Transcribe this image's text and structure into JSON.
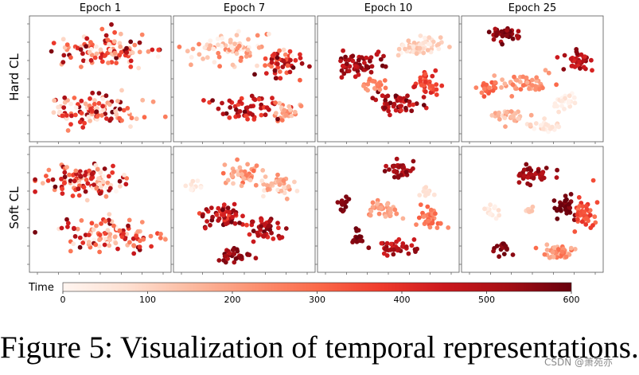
{
  "figure": {
    "caption": "Figure 5: Visualization of temporal representations.",
    "watermark": "CSDN @萧苑亦"
  },
  "chart_data": {
    "type": "scatter",
    "subtype": "t-SNE embedding grid",
    "columns": [
      "Epoch 1",
      "Epoch 7",
      "Epoch 10",
      "Epoch 25"
    ],
    "rows": [
      "Hard CL",
      "Soft CL"
    ],
    "colorbar": {
      "label": "Time",
      "min": 0,
      "max": 600,
      "ticks": [
        0,
        100,
        200,
        300,
        400,
        500,
        600
      ],
      "colormap": "Reds",
      "colors": [
        "#fff5f0",
        "#fee0d2",
        "#fcbba1",
        "#fc9272",
        "#fb6a4a",
        "#ef3b2c",
        "#cb181d",
        "#a50f15",
        "#67000d"
      ]
    },
    "panels": [
      {
        "row": "Hard CL",
        "col": "Epoch 1",
        "clusters": [
          {
            "cx": 0.52,
            "cy": 0.72,
            "sx": 0.36,
            "sy": 0.15,
            "n": 110,
            "tmin": 0,
            "tmax": 600
          },
          {
            "cx": 0.45,
            "cy": 0.25,
            "sx": 0.38,
            "sy": 0.15,
            "n": 110,
            "tmin": 0,
            "tmax": 600
          }
        ]
      },
      {
        "row": "Hard CL",
        "col": "Epoch 7",
        "clusters": [
          {
            "cx": 0.42,
            "cy": 0.75,
            "sx": 0.34,
            "sy": 0.13,
            "n": 80,
            "tmin": 0,
            "tmax": 280
          },
          {
            "cx": 0.75,
            "cy": 0.62,
            "sx": 0.17,
            "sy": 0.12,
            "n": 50,
            "tmin": 250,
            "tmax": 600
          },
          {
            "cx": 0.5,
            "cy": 0.27,
            "sx": 0.28,
            "sy": 0.11,
            "n": 55,
            "tmin": 350,
            "tmax": 600
          },
          {
            "cx": 0.78,
            "cy": 0.24,
            "sx": 0.12,
            "sy": 0.1,
            "n": 28,
            "tmin": 100,
            "tmax": 300
          }
        ]
      },
      {
        "row": "Hard CL",
        "col": "Epoch 10",
        "clusters": [
          {
            "cx": 0.72,
            "cy": 0.75,
            "sx": 0.15,
            "sy": 0.1,
            "n": 60,
            "tmin": 0,
            "tmax": 150
          },
          {
            "cx": 0.3,
            "cy": 0.62,
            "sx": 0.18,
            "sy": 0.12,
            "n": 60,
            "tmin": 450,
            "tmax": 600
          },
          {
            "cx": 0.78,
            "cy": 0.45,
            "sx": 0.12,
            "sy": 0.09,
            "n": 40,
            "tmin": 300,
            "tmax": 450
          },
          {
            "cx": 0.58,
            "cy": 0.3,
            "sx": 0.16,
            "sy": 0.1,
            "n": 50,
            "tmin": 400,
            "tmax": 600
          },
          {
            "cx": 0.4,
            "cy": 0.45,
            "sx": 0.1,
            "sy": 0.07,
            "n": 22,
            "tmin": 200,
            "tmax": 300
          }
        ]
      },
      {
        "row": "Hard CL",
        "col": "Epoch 25",
        "clusters": [
          {
            "cx": 0.32,
            "cy": 0.86,
            "sx": 0.12,
            "sy": 0.07,
            "n": 40,
            "tmin": 500,
            "tmax": 600
          },
          {
            "cx": 0.82,
            "cy": 0.64,
            "sx": 0.12,
            "sy": 0.08,
            "n": 38,
            "tmin": 420,
            "tmax": 560
          },
          {
            "cx": 0.45,
            "cy": 0.47,
            "sx": 0.2,
            "sy": 0.08,
            "n": 50,
            "tmin": 150,
            "tmax": 300
          },
          {
            "cx": 0.18,
            "cy": 0.42,
            "sx": 0.07,
            "sy": 0.07,
            "n": 20,
            "tmin": 250,
            "tmax": 350
          },
          {
            "cx": 0.72,
            "cy": 0.32,
            "sx": 0.1,
            "sy": 0.07,
            "n": 25,
            "tmin": 0,
            "tmax": 80
          },
          {
            "cx": 0.3,
            "cy": 0.2,
            "sx": 0.12,
            "sy": 0.07,
            "n": 28,
            "tmin": 80,
            "tmax": 220
          },
          {
            "cx": 0.6,
            "cy": 0.12,
            "sx": 0.12,
            "sy": 0.05,
            "n": 25,
            "tmin": 0,
            "tmax": 130
          }
        ]
      },
      {
        "row": "Soft CL",
        "col": "Epoch 1",
        "clusters": [
          {
            "cx": 0.4,
            "cy": 0.72,
            "sx": 0.34,
            "sy": 0.15,
            "n": 110,
            "tmin": 0,
            "tmax": 600
          },
          {
            "cx": 0.55,
            "cy": 0.3,
            "sx": 0.38,
            "sy": 0.15,
            "n": 110,
            "tmin": 0,
            "tmax": 600
          }
        ]
      },
      {
        "row": "Soft CL",
        "col": "Epoch 7",
        "clusters": [
          {
            "cx": 0.72,
            "cy": 0.7,
            "sx": 0.14,
            "sy": 0.1,
            "n": 40,
            "tmin": 50,
            "tmax": 250
          },
          {
            "cx": 0.48,
            "cy": 0.78,
            "sx": 0.14,
            "sy": 0.1,
            "n": 40,
            "tmin": 100,
            "tmax": 300
          },
          {
            "cx": 0.15,
            "cy": 0.68,
            "sx": 0.06,
            "sy": 0.06,
            "n": 12,
            "tmin": 0,
            "tmax": 80
          },
          {
            "cx": 0.35,
            "cy": 0.45,
            "sx": 0.16,
            "sy": 0.12,
            "n": 55,
            "tmin": 350,
            "tmax": 600
          },
          {
            "cx": 0.65,
            "cy": 0.35,
            "sx": 0.14,
            "sy": 0.1,
            "n": 45,
            "tmin": 400,
            "tmax": 600
          },
          {
            "cx": 0.45,
            "cy": 0.12,
            "sx": 0.14,
            "sy": 0.06,
            "n": 30,
            "tmin": 480,
            "tmax": 600
          }
        ]
      },
      {
        "row": "Soft CL",
        "col": "Epoch 10",
        "clusters": [
          {
            "cx": 0.58,
            "cy": 0.82,
            "sx": 0.11,
            "sy": 0.07,
            "n": 35,
            "tmin": 480,
            "tmax": 580
          },
          {
            "cx": 0.47,
            "cy": 0.5,
            "sx": 0.15,
            "sy": 0.07,
            "n": 40,
            "tmin": 150,
            "tmax": 250
          },
          {
            "cx": 0.18,
            "cy": 0.55,
            "sx": 0.05,
            "sy": 0.06,
            "n": 14,
            "tmin": 550,
            "tmax": 600
          },
          {
            "cx": 0.8,
            "cy": 0.43,
            "sx": 0.1,
            "sy": 0.08,
            "n": 35,
            "tmin": 220,
            "tmax": 320
          },
          {
            "cx": 0.78,
            "cy": 0.63,
            "sx": 0.05,
            "sy": 0.04,
            "n": 10,
            "tmin": 60,
            "tmax": 120
          },
          {
            "cx": 0.28,
            "cy": 0.28,
            "sx": 0.05,
            "sy": 0.06,
            "n": 14,
            "tmin": 550,
            "tmax": 600
          },
          {
            "cx": 0.55,
            "cy": 0.2,
            "sx": 0.15,
            "sy": 0.07,
            "n": 40,
            "tmin": 420,
            "tmax": 560
          }
        ]
      },
      {
        "row": "Soft CL",
        "col": "Epoch 25",
        "clusters": [
          {
            "cx": 0.5,
            "cy": 0.78,
            "sx": 0.14,
            "sy": 0.08,
            "n": 40,
            "tmin": 480,
            "tmax": 580
          },
          {
            "cx": 0.2,
            "cy": 0.48,
            "sx": 0.06,
            "sy": 0.06,
            "n": 14,
            "tmin": 0,
            "tmax": 80
          },
          {
            "cx": 0.48,
            "cy": 0.5,
            "sx": 0.05,
            "sy": 0.05,
            "n": 8,
            "tmin": 80,
            "tmax": 150
          },
          {
            "cx": 0.72,
            "cy": 0.52,
            "sx": 0.08,
            "sy": 0.09,
            "n": 35,
            "tmin": 550,
            "tmax": 600
          },
          {
            "cx": 0.87,
            "cy": 0.48,
            "sx": 0.07,
            "sy": 0.13,
            "n": 40,
            "tmin": 280,
            "tmax": 400
          },
          {
            "cx": 0.3,
            "cy": 0.2,
            "sx": 0.06,
            "sy": 0.06,
            "n": 18,
            "tmin": 540,
            "tmax": 600
          },
          {
            "cx": 0.68,
            "cy": 0.16,
            "sx": 0.14,
            "sy": 0.07,
            "n": 45,
            "tmin": 150,
            "tmax": 300
          }
        ]
      }
    ]
  }
}
